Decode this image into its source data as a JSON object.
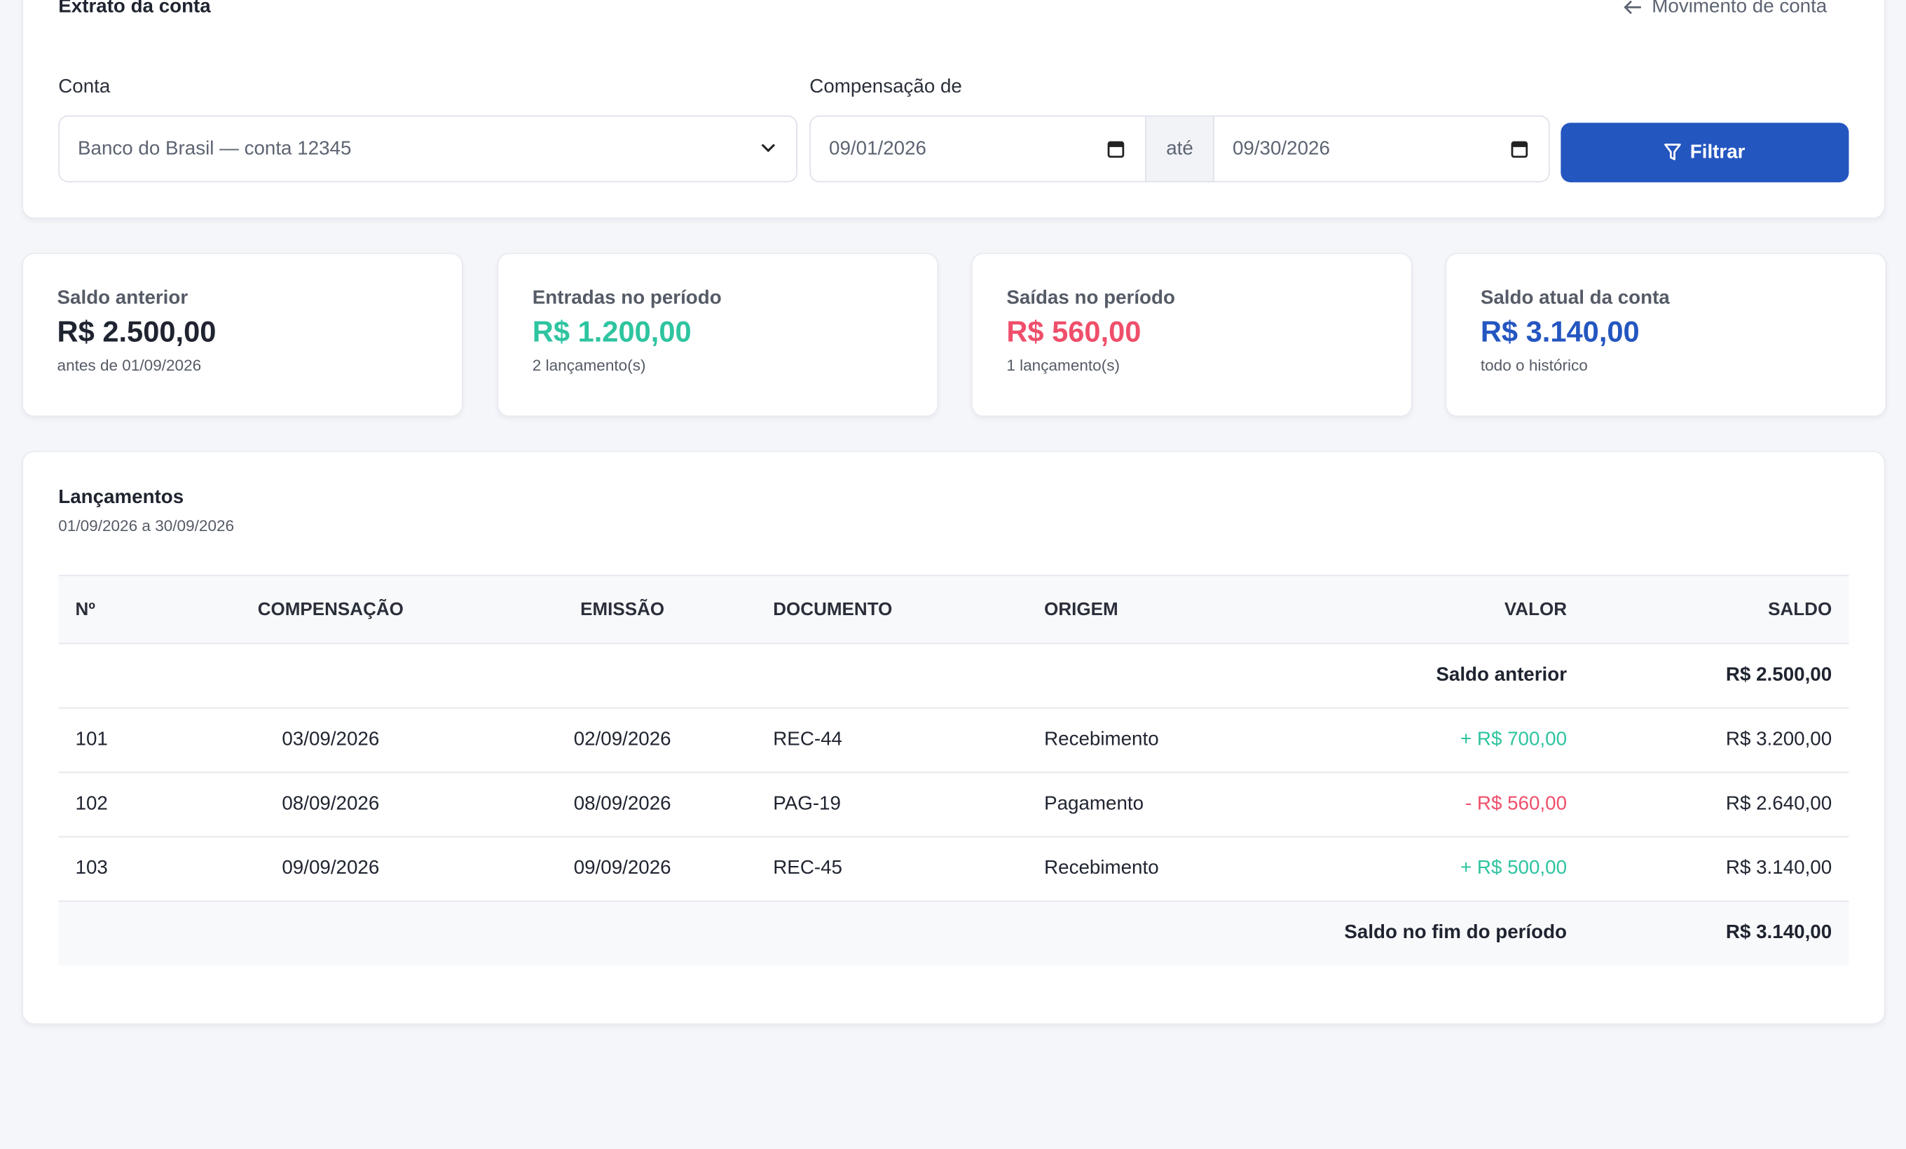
{
  "header": {
    "title": "Extrato da conta",
    "back_link": "Movimento de conta"
  },
  "filters": {
    "account_label": "Conta",
    "account_value": "Banco do Brasil — conta 12345",
    "date_label": "Compensação de",
    "date_from": "09/01/2026",
    "date_separator": "até",
    "date_to": "09/30/2026",
    "button": "Filtrar"
  },
  "cards": [
    {
      "label": "Saldo anterior",
      "value": "R$ 2.500,00",
      "note": "antes de 01/09/2026",
      "color": "#1f2430"
    },
    {
      "label": "Entradas no período",
      "value": "R$ 1.200,00",
      "note": "2 lançamento(s)",
      "color": "#2ec4a0"
    },
    {
      "label": "Saídas no período",
      "value": "R$ 560,00",
      "note": "1 lançamento(s)",
      "color": "#ef4f6b"
    },
    {
      "label": "Saldo atual da conta",
      "value": "R$ 3.140,00",
      "note": "todo o histórico",
      "color": "#2456c0"
    }
  ],
  "table": {
    "title": "Lançamentos",
    "subtitle": "01/09/2026 a 30/09/2026",
    "columns": [
      "Nº",
      "COMPENSAÇÃO",
      "EMISSÃO",
      "DOCUMENTO",
      "ORIGEM",
      "VALOR",
      "SALDO"
    ],
    "opening": {
      "label": "Saldo anterior",
      "balance": "R$ 2.500,00"
    },
    "rows": [
      [
        "101",
        "03/09/2026",
        "02/09/2026",
        "REC-44",
        "Recebimento",
        "+ R$ 700,00",
        "R$ 3.200,00"
      ],
      [
        "102",
        "08/09/2026",
        "08/09/2026",
        "PAG-19",
        "Pagamento",
        "- R$ 560,00",
        "R$ 2.640,00"
      ],
      [
        "103",
        "09/09/2026",
        "09/09/2026",
        "REC-45",
        "Recebimento",
        "+ R$ 500,00",
        "R$ 3.140,00"
      ]
    ],
    "closing": {
      "label": "Saldo no fim do período",
      "balance": "R$ 3.140,00"
    }
  }
}
